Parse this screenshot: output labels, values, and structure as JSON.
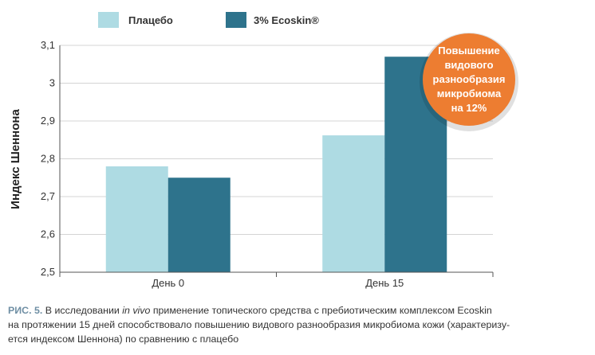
{
  "chart_data": {
    "type": "bar",
    "categories": [
      "День 0",
      "День 15"
    ],
    "series": [
      {
        "name": "Плацебо",
        "color": "#aedbe3",
        "values": [
          2.78,
          2.862
        ]
      },
      {
        "name": "3% Ecoskin®",
        "color": "#2e738c",
        "values": [
          2.75,
          3.07
        ]
      }
    ],
    "ylabel": "Индекс Шеннона",
    "ylim": [
      2.5,
      3.1
    ],
    "yticks": [
      "2,5",
      "2,6",
      "2,7",
      "2,8",
      "2,9",
      "3",
      "3,1"
    ],
    "grid": true,
    "legend": "top",
    "annotation": {
      "lines": [
        "Повышение",
        "видового",
        "разнообразия",
        "микробиома",
        "на 12%"
      ],
      "color": "#ed7d31"
    }
  },
  "caption": {
    "label": "РИС. 5.",
    "line1_before": " В исследовании ",
    "line1_italic": "in vivo",
    "line1_after": " применение топического средства с пребиотическим комплексом Ecoskin",
    "line2": "на протяжении 15 дней способствовало повышению видового разнообразия микробиома кожи (характеризу-",
    "line3": "ется индексом Шеннона) по сравнению с плацебо"
  }
}
